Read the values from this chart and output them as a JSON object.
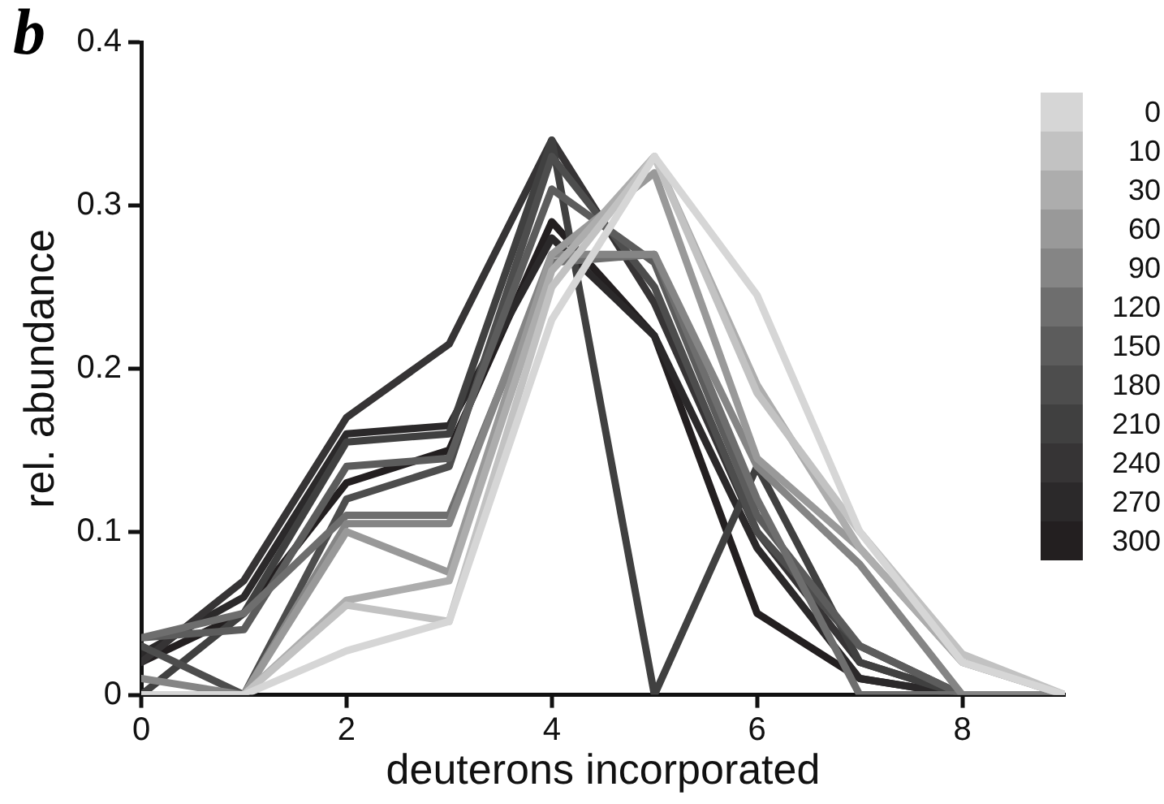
{
  "chart_data": {
    "type": "line",
    "xlabel": "deuterons incorporated",
    "ylabel": "rel. abundance",
    "annotations": [
      "b"
    ],
    "x": [
      0,
      1,
      2,
      3,
      4,
      5,
      6,
      7,
      8,
      9
    ],
    "xlim": [
      0,
      9
    ],
    "xticks": [
      0,
      2,
      4,
      6,
      8
    ],
    "ylim": [
      0,
      0.4
    ],
    "yticks": [
      0,
      0.1,
      0.2,
      0.3,
      0.4
    ],
    "grid": false,
    "legend": "right",
    "marker": "none",
    "line_style": "solid",
    "series": [
      {
        "name": "0",
        "color": "#d6d6d6",
        "values": [
          0,
          0,
          0.027,
          0.045,
          0.23,
          0.33,
          0.245,
          0.1,
          0.02,
          0
        ]
      },
      {
        "name": "10",
        "color": "#c2c2c2",
        "values": [
          0,
          0,
          0.055,
          0.045,
          0.25,
          0.33,
          0.185,
          0.1,
          0.025,
          0
        ]
      },
      {
        "name": "30",
        "color": "#adadad",
        "values": [
          0,
          0,
          0.058,
          0.07,
          0.26,
          0.33,
          0.19,
          0.09,
          0.02,
          0
        ]
      },
      {
        "name": "60",
        "color": "#999999",
        "values": [
          0,
          0,
          0.1,
          0.075,
          0.27,
          0.32,
          0.145,
          0.09,
          0.02,
          0
        ]
      },
      {
        "name": "90",
        "color": "#858585",
        "values": [
          0.01,
          0,
          0.105,
          0.105,
          0.27,
          0.27,
          0.14,
          0.08,
          0,
          0
        ]
      },
      {
        "name": "120",
        "color": "#6e6e6e",
        "values": [
          0.035,
          0.05,
          0.11,
          0.11,
          0.265,
          0.27,
          0.12,
          0,
          0,
          0
        ]
      },
      {
        "name": "150",
        "color": "#5c5c5c",
        "values": [
          0.035,
          0.04,
          0.14,
          0.145,
          0.31,
          0.265,
          0.11,
          0.03,
          0,
          0
        ]
      },
      {
        "name": "180",
        "color": "#4d4d4d",
        "values": [
          0.03,
          0,
          0.12,
          0.14,
          0.33,
          0.25,
          0.1,
          0.03,
          0,
          0
        ]
      },
      {
        "name": "210",
        "color": "#404040",
        "values": [
          0,
          0.05,
          0.155,
          0.16,
          0.34,
          0,
          0.14,
          0.02,
          0,
          0
        ]
      },
      {
        "name": "240",
        "color": "#363435",
        "values": [
          0.02,
          0.07,
          0.17,
          0.215,
          0.34,
          0.24,
          0.1,
          0.02,
          0,
          0
        ]
      },
      {
        "name": "270",
        "color": "#2b292a",
        "values": [
          0.025,
          0.06,
          0.16,
          0.165,
          0.28,
          0.22,
          0.09,
          0.01,
          0,
          0
        ]
      },
      {
        "name": "300",
        "color": "#231f20",
        "values": [
          0.02,
          0.05,
          0.13,
          0.15,
          0.29,
          0.22,
          0.05,
          0.01,
          0,
          0
        ]
      }
    ]
  }
}
